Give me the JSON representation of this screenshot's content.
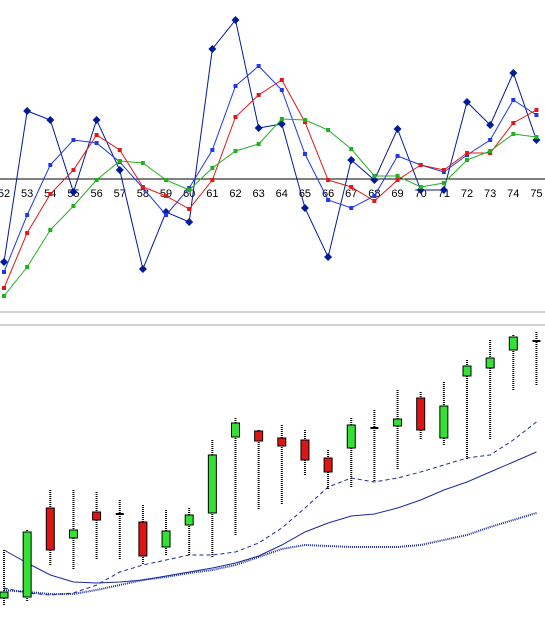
{
  "chart_data": [
    {
      "type": "line",
      "categories": [
        "52",
        "53",
        "54",
        "55",
        "56",
        "57",
        "58",
        "59",
        "60",
        "61",
        "62",
        "63",
        "64",
        "65",
        "66",
        "67",
        "68",
        "69",
        "70",
        "71",
        "72",
        "73",
        "74",
        "75"
      ],
      "ylim": [
        -131,
        179
      ],
      "series": [
        {
          "color": "#001a9a",
          "marker": "diamond",
          "values": [
            -83,
            68,
            59,
            -13,
            59,
            9,
            -90,
            -33,
            -43,
            130,
            159,
            51,
            55,
            -29,
            -78,
            19,
            -1,
            50,
            -11,
            -11,
            77,
            54,
            106,
            39
          ]
        },
        {
          "color": "#2038e8",
          "marker": "square",
          "values": [
            -93,
            -36,
            14,
            39,
            36,
            17,
            -9,
            -36,
            -9,
            29,
            93,
            113,
            89,
            25,
            -21,
            -29,
            -17,
            23,
            14,
            7,
            24,
            39,
            79,
            64
          ]
        },
        {
          "color": "#e01818",
          "marker": "square",
          "values": [
            -109,
            -54,
            -15,
            9,
            44,
            29,
            -8,
            -17,
            -30,
            -1,
            62,
            84,
            99,
            57,
            -1,
            -8,
            -22,
            -1,
            14,
            9,
            26,
            26,
            56,
            69
          ]
        },
        {
          "color": "#22b022",
          "marker": "square",
          "values": [
            -117,
            -88,
            -51,
            -27,
            -1,
            18,
            16,
            -1,
            -11,
            11,
            28,
            35,
            60,
            59,
            49,
            30,
            3,
            3,
            -8,
            -4,
            19,
            28,
            45,
            42
          ]
        }
      ]
    },
    {
      "type": "candlestick",
      "ylim": [
        0,
        280
      ],
      "up_color": "#33e033",
      "down_color": "#dd1515",
      "open": [
        12,
        13,
        102,
        72,
        98,
        96,
        88,
        63,
        85,
        97,
        173,
        179,
        172,
        170,
        152,
        162,
        182,
        184,
        212,
        172,
        234,
        242,
        260,
        269
      ],
      "high": [
        60,
        80,
        120,
        120,
        118,
        110,
        105,
        100,
        102,
        170,
        192,
        180,
        185,
        180,
        160,
        192,
        200,
        220,
        218,
        228,
        250,
        270,
        275,
        278
      ],
      "low": [
        5,
        8,
        45,
        40,
        50,
        50,
        45,
        54,
        55,
        53,
        75,
        100,
        105,
        135,
        120,
        122,
        128,
        140,
        170,
        165,
        150,
        170,
        220,
        225
      ],
      "close": [
        18,
        78,
        60,
        80,
        90,
        96,
        54,
        79,
        95,
        155,
        187,
        169,
        164,
        150,
        138,
        185,
        182,
        191,
        180,
        204,
        244,
        252,
        273,
        269
      ],
      "lines": [
        {
          "color": "#1a2a9a",
          "style": "dashed",
          "values": [
            22,
            17,
            15,
            17,
            25,
            38,
            45,
            50,
            55,
            55,
            58,
            67,
            82,
            102,
            123,
            132,
            128,
            132,
            138,
            145,
            152,
            155,
            170,
            188
          ]
        },
        {
          "color": "#1a2a9a",
          "style": "solid",
          "values": [
            60,
            47,
            35,
            28,
            27,
            28,
            30,
            34,
            38,
            42,
            47,
            54,
            65,
            78,
            87,
            94,
            96,
            102,
            110,
            120,
            128,
            138,
            148,
            158
          ]
        },
        {
          "color": "#1a2a9a",
          "style": "thick",
          "values": [
            20,
            18,
            16,
            16,
            20,
            25,
            30,
            33,
            37,
            40,
            45,
            53,
            61,
            65,
            64,
            63,
            63,
            63,
            65,
            70,
            75,
            83,
            90,
            97
          ]
        }
      ]
    }
  ]
}
